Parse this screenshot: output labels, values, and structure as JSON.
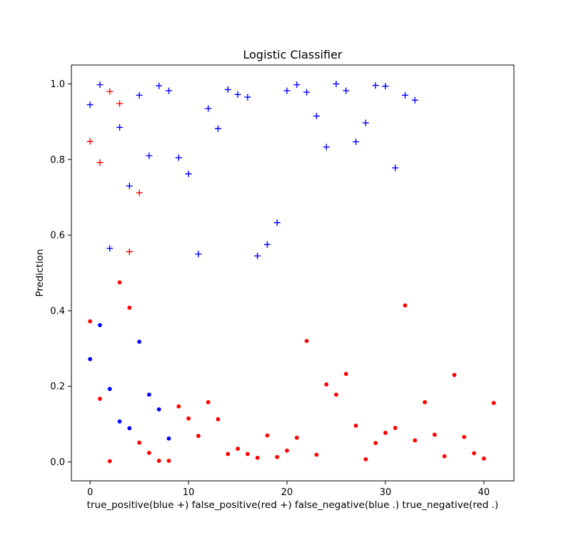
{
  "chart_data": {
    "type": "scatter",
    "title": "Logistic Classifier",
    "xlabel": "true_positive(blue +) false_positive(red +) false_negative(blue .) true_negative(red .)",
    "ylabel": "Prediction",
    "xlim": [
      -1.9,
      43.05
    ],
    "ylim": [
      -0.05,
      1.05
    ],
    "xticks": [
      0,
      10,
      20,
      30,
      40
    ],
    "yticks": [
      0.0,
      0.2,
      0.4,
      0.6,
      0.8,
      1.0
    ],
    "grid": false,
    "legend": "none",
    "series": [
      {
        "marker": "+",
        "color": "#0000ff",
        "x": [
          0,
          1,
          2,
          3,
          4,
          5,
          6,
          7,
          8,
          9,
          10,
          11,
          12,
          13,
          14,
          15,
          16,
          17,
          18,
          19,
          20,
          21,
          22,
          23,
          24,
          25,
          26,
          27,
          28,
          29,
          30,
          31,
          32,
          33
        ],
        "y": [
          0.945,
          0.998,
          0.565,
          0.885,
          0.73,
          0.97,
          0.81,
          0.995,
          0.982,
          0.805,
          0.762,
          0.55,
          0.935,
          0.882,
          0.985,
          0.972,
          0.965,
          0.545,
          0.575,
          0.633,
          0.982,
          0.998,
          0.978,
          0.915,
          0.833,
          1.0,
          0.982,
          0.847,
          0.897,
          0.996,
          0.994,
          0.778,
          0.97,
          0.957
        ]
      },
      {
        "marker": "+",
        "color": "#ff0000",
        "x": [
          0,
          1,
          2,
          3,
          4,
          5
        ],
        "y": [
          0.848,
          0.792,
          0.98,
          0.948,
          0.556,
          0.712
        ]
      },
      {
        "marker": ".",
        "color": "#0000ff",
        "x": [
          0,
          1,
          2,
          3,
          4,
          5,
          6,
          7,
          8
        ],
        "y": [
          0.272,
          0.362,
          0.193,
          0.107,
          0.089,
          0.318,
          0.178,
          0.139,
          0.062
        ]
      },
      {
        "marker": ".",
        "color": "#ff0000",
        "x": [
          0,
          1,
          2,
          3,
          4,
          5,
          6,
          7,
          8,
          9,
          10,
          11,
          12,
          13,
          14,
          15,
          16,
          17,
          18,
          19,
          20,
          21,
          22,
          23,
          24,
          25,
          26,
          27,
          28,
          29,
          30,
          31,
          32,
          33,
          34,
          35,
          36,
          37,
          38,
          39,
          40,
          41
        ],
        "y": [
          0.372,
          0.167,
          0.002,
          0.475,
          0.408,
          0.051,
          0.024,
          0.003,
          0.003,
          0.147,
          0.115,
          0.069,
          0.158,
          0.113,
          0.021,
          0.035,
          0.021,
          0.011,
          0.07,
          0.013,
          0.03,
          0.064,
          0.32,
          0.019,
          0.205,
          0.178,
          0.233,
          0.096,
          0.007,
          0.05,
          0.077,
          0.09,
          0.414,
          0.057,
          0.158,
          0.072,
          0.015,
          0.23,
          0.066,
          0.023,
          0.009,
          0.156
        ]
      }
    ]
  }
}
